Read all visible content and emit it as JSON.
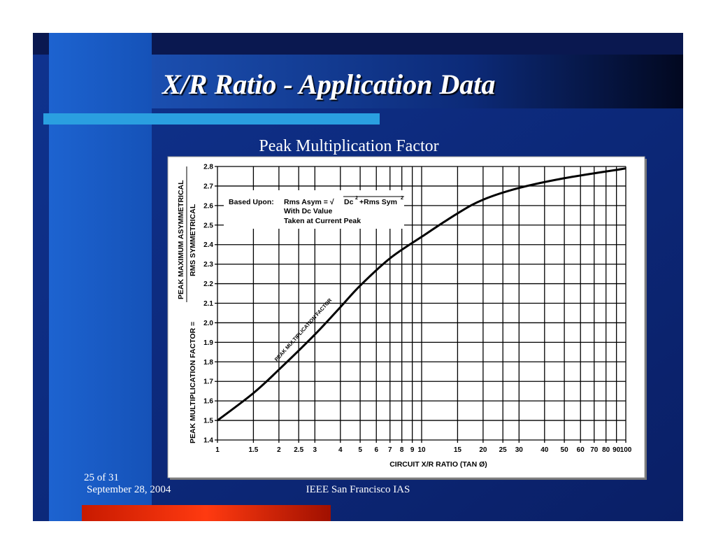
{
  "slide": {
    "title": "X/R Ratio - Application Data"
  },
  "footer": {
    "page": "25 of 31",
    "date": "September 28, 2004",
    "org": "IEEE San Francisco IAS"
  },
  "chart_data": {
    "type": "line",
    "title": "Peak Multiplication Factor",
    "xlabel": "CIRCUIT X/R RATIO (TAN Ø)",
    "ylabel": "PEAK MULTIPLICATION FACTOR =",
    "ylabel_numerator": "PEAK MAXIMUM ASYMMETRICAL",
    "ylabel_denominator": "RMS SYMMETRICAL",
    "annotation": {
      "lead": "Based Upon:",
      "formula_left": "Rms Asym = √",
      "dc": "Dc",
      "dc_exp": "2",
      "rms": "+Rms Sym",
      "rms_exp": "2",
      "line2": "With Dc Value",
      "line3": "Taken at Current Peak"
    },
    "xscale": "log",
    "grid": true,
    "xlim": [
      1,
      100
    ],
    "ylim": [
      1.4,
      2.8
    ],
    "xticks": [
      1,
      1.5,
      2,
      2.5,
      3,
      4,
      5,
      6,
      7,
      8,
      9,
      10,
      15,
      20,
      25,
      30,
      40,
      50,
      60,
      70,
      80,
      90,
      100
    ],
    "yticks": [
      1.4,
      1.5,
      1.6,
      1.7,
      1.8,
      1.9,
      {
        "value": 2,
        "label": "2.0"
      },
      2.1,
      2.2,
      2.3,
      2.4,
      2.5,
      2.6,
      2.7,
      2.8
    ],
    "x": [
      1,
      1.5,
      2,
      3,
      4,
      5,
      7,
      10,
      15,
      20,
      30,
      50,
      100
    ],
    "series": [
      {
        "name": "PEAK MULTIPLICATION FACTOR",
        "color": "#000000",
        "values": [
          1.5,
          1.64,
          1.76,
          1.94,
          2.08,
          2.19,
          2.33,
          2.44,
          2.56,
          2.63,
          2.69,
          2.74,
          2.79
        ]
      }
    ]
  }
}
